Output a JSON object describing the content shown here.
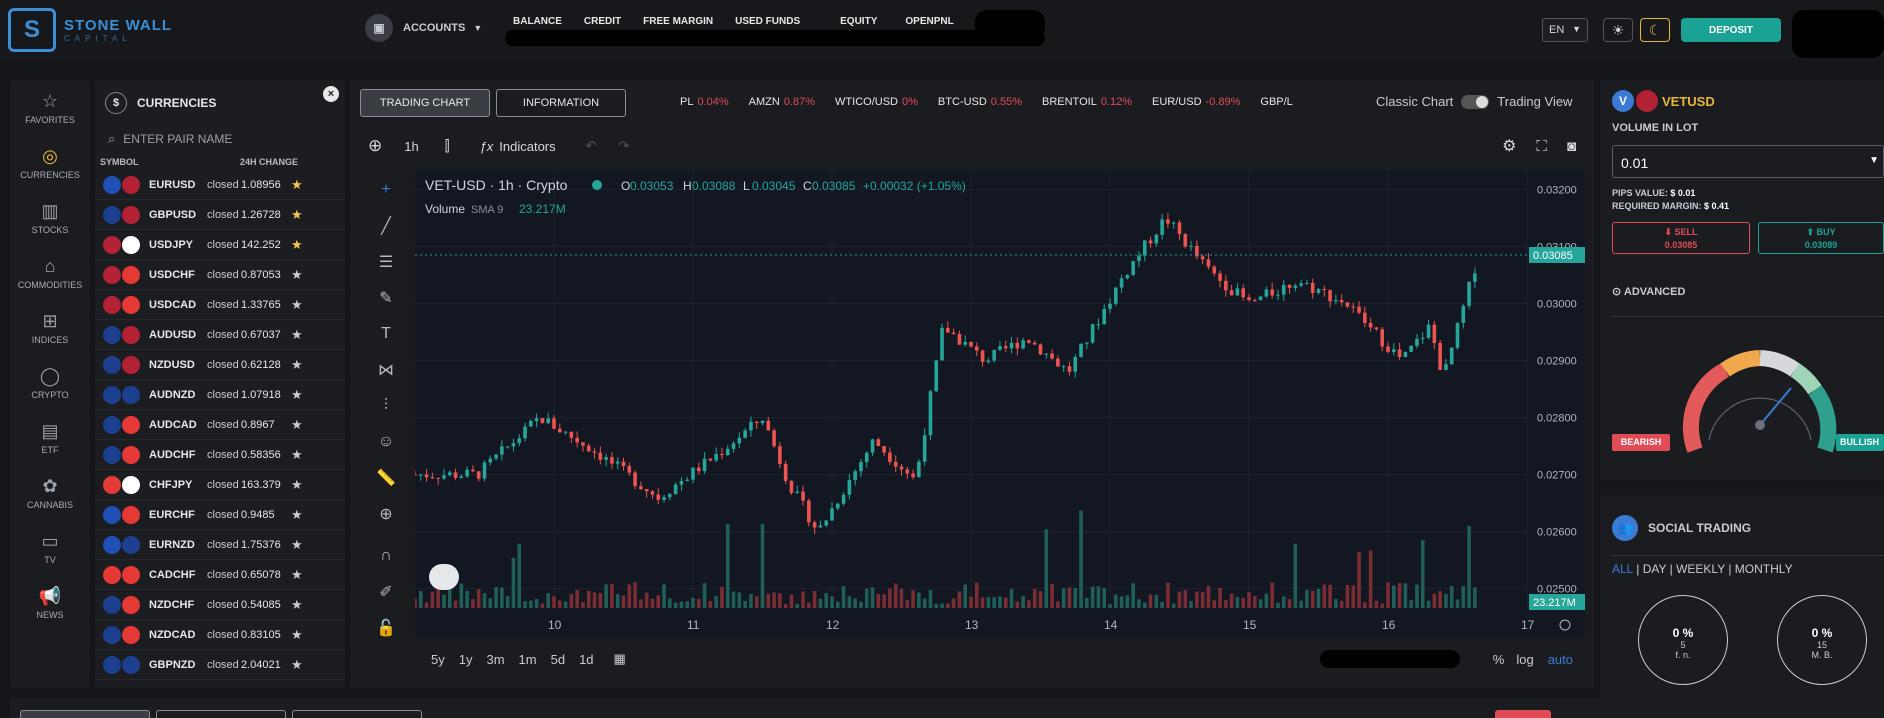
{
  "app": {
    "brand": "STONE WALL",
    "brand_sub": "CAPITAL"
  },
  "topbar": {
    "accounts_label": "ACCOUNTS",
    "nav": [
      "BALANCE",
      "CREDIT",
      "FREE MARGIN",
      "USED FUNDS",
      "EQUITY",
      "OPENPNL"
    ],
    "language": "EN",
    "deposit_label": "DEPOSIT"
  },
  "sidebar": {
    "items": [
      {
        "label": "FAVORITES",
        "icon": "star-icon"
      },
      {
        "label": "CURRENCIES",
        "icon": "coin-icon"
      },
      {
        "label": "STOCKS",
        "icon": "bar-chart-icon"
      },
      {
        "label": "COMMODITIES",
        "icon": "factory-icon"
      },
      {
        "label": "INDICES",
        "icon": "indices-icon"
      },
      {
        "label": "CRYPTO",
        "icon": "crypto-icon"
      },
      {
        "label": "ETF",
        "icon": "document-icon"
      },
      {
        "label": "CANNABIS",
        "icon": "leaf-icon"
      },
      {
        "label": "TV",
        "icon": "tv-icon"
      },
      {
        "label": "NEWS",
        "icon": "megaphone-icon"
      }
    ]
  },
  "currencies": {
    "title": "CURRENCIES",
    "search_placeholder": "ENTER PAIR NAME",
    "col_symbol": "SYMBOL",
    "col_change": "24H CHANGE",
    "rows": [
      {
        "symbol": "EURUSD",
        "status": "closed",
        "price": "1.08956",
        "fav": true,
        "f1": "#1f4fb5",
        "f2": "#b22234"
      },
      {
        "symbol": "GBPUSD",
        "status": "closed",
        "price": "1.26728",
        "fav": true,
        "f1": "#1d3f8f",
        "f2": "#b22234"
      },
      {
        "symbol": "USDJPY",
        "status": "closed",
        "price": "142.252",
        "fav": true,
        "f1": "#b22234",
        "f2": "#ffffff"
      },
      {
        "symbol": "USDCHF",
        "status": "closed",
        "price": "0.87053",
        "fav": false,
        "f1": "#b22234",
        "f2": "#e53935"
      },
      {
        "symbol": "USDCAD",
        "status": "closed",
        "price": "1.33765",
        "fav": false,
        "f1": "#b22234",
        "f2": "#e53935"
      },
      {
        "symbol": "AUDUSD",
        "status": "closed",
        "price": "0.67037",
        "fav": false,
        "f1": "#1d3f8f",
        "f2": "#b22234"
      },
      {
        "symbol": "NZDUSD",
        "status": "closed",
        "price": "0.62128",
        "fav": false,
        "f1": "#1d3f8f",
        "f2": "#b22234"
      },
      {
        "symbol": "AUDNZD",
        "status": "closed",
        "price": "1.07918",
        "fav": false,
        "f1": "#1d3f8f",
        "f2": "#1d3f8f"
      },
      {
        "symbol": "AUDCAD",
        "status": "closed",
        "price": "0.8967",
        "fav": false,
        "f1": "#1d3f8f",
        "f2": "#e53935"
      },
      {
        "symbol": "AUDCHF",
        "status": "closed",
        "price": "0.58356",
        "fav": false,
        "f1": "#1d3f8f",
        "f2": "#e53935"
      },
      {
        "symbol": "CHFJPY",
        "status": "closed",
        "price": "163.379",
        "fav": false,
        "f1": "#e53935",
        "f2": "#ffffff"
      },
      {
        "symbol": "EURCHF",
        "status": "closed",
        "price": "0.9485",
        "fav": false,
        "f1": "#1f4fb5",
        "f2": "#e53935"
      },
      {
        "symbol": "EURNZD",
        "status": "closed",
        "price": "1.75376",
        "fav": false,
        "f1": "#1f4fb5",
        "f2": "#1d3f8f"
      },
      {
        "symbol": "CADCHF",
        "status": "closed",
        "price": "0.65078",
        "fav": false,
        "f1": "#e53935",
        "f2": "#e53935"
      },
      {
        "symbol": "NZDCHF",
        "status": "closed",
        "price": "0.54085",
        "fav": false,
        "f1": "#1d3f8f",
        "f2": "#e53935"
      },
      {
        "symbol": "NZDCAD",
        "status": "closed",
        "price": "0.83105",
        "fav": false,
        "f1": "#1d3f8f",
        "f2": "#e53935"
      },
      {
        "symbol": "GBPNZD",
        "status": "closed",
        "price": "2.04021",
        "fav": false,
        "f1": "#1d3f8f",
        "f2": "#1d3f8f"
      }
    ]
  },
  "chart_tabs": {
    "trading_chart": "TRADING CHART",
    "information": "INFORMATION"
  },
  "ticker": [
    {
      "name": "PL",
      "value": "0.04%"
    },
    {
      "name": "AMZN",
      "value": "0.87%"
    },
    {
      "name": "WTICO/USD",
      "value": "0%"
    },
    {
      "name": "BTC-USD",
      "value": "0.55%"
    },
    {
      "name": "BRENTOIL",
      "value": "0.12%"
    },
    {
      "name": "EUR/USD",
      "value": "-0.89%"
    },
    {
      "name": "GBP/L",
      "value": ""
    }
  ],
  "view_toggle": {
    "classic": "Classic Chart",
    "trading": "Trading View"
  },
  "tv": {
    "interval": "1h",
    "indicators_label": "Indicators",
    "legend_symbol": "VET-USD · 1h · Crypto",
    "o_label": "O",
    "o_val": "0.03053",
    "h_label": "H",
    "h_val": "0.03088",
    "l_label": "L",
    "l_val": "0.03045",
    "c_label": "C",
    "c_val": "0.03085",
    "change": "+0.00032 (+1.05%)",
    "volume_label": "Volume",
    "volume_sma": "SMA 9",
    "volume_value": "23.217M",
    "price_tag": "0.03085",
    "volume_tag": "23.217M",
    "y_ticks": [
      "0.03200",
      "0.03100",
      "0.03000",
      "0.02900",
      "0.02800",
      "0.02700",
      "0.02600",
      "0.02500"
    ],
    "x_ticks": [
      "10",
      "11",
      "12",
      "13",
      "14",
      "15",
      "16",
      "17"
    ],
    "timeframes": [
      "5y",
      "1y",
      "3m",
      "1m",
      "5d",
      "1d"
    ],
    "pct": "%",
    "log": "log",
    "auto": "auto"
  },
  "chart_data": {
    "type": "candlestick",
    "symbol": "VET-USD",
    "interval": "1h",
    "x_range": [
      "9",
      "17"
    ],
    "y_range": [
      0.0248,
      0.0322
    ],
    "anchors": [
      {
        "x": 9.45,
        "close": 0.027
      },
      {
        "x": 9.9,
        "close": 0.028
      },
      {
        "x": 10.3,
        "close": 0.0274
      },
      {
        "x": 10.75,
        "close": 0.0266
      },
      {
        "x": 11.2,
        "close": 0.0274
      },
      {
        "x": 11.5,
        "close": 0.028
      },
      {
        "x": 11.7,
        "close": 0.0268
      },
      {
        "x": 11.9,
        "close": 0.026
      },
      {
        "x": 12.3,
        "close": 0.0276
      },
      {
        "x": 12.6,
        "close": 0.0269
      },
      {
        "x": 12.8,
        "close": 0.0296
      },
      {
        "x": 13.1,
        "close": 0.029
      },
      {
        "x": 13.4,
        "close": 0.0294
      },
      {
        "x": 13.7,
        "close": 0.0288
      },
      {
        "x": 14.1,
        "close": 0.0305
      },
      {
        "x": 14.4,
        "close": 0.0315
      },
      {
        "x": 14.7,
        "close": 0.0306
      },
      {
        "x": 15.0,
        "close": 0.03
      },
      {
        "x": 15.35,
        "close": 0.0304
      },
      {
        "x": 15.7,
        "close": 0.03
      },
      {
        "x": 16.1,
        "close": 0.029
      },
      {
        "x": 16.3,
        "close": 0.0296
      },
      {
        "x": 16.4,
        "close": 0.0287
      },
      {
        "x": 16.65,
        "close": 0.03085
      }
    ],
    "last_price": 0.03085,
    "last_volume": "23.217M"
  },
  "order": {
    "symbol": "VETUSD",
    "volume_label": "VOLUME IN LOT",
    "volume_value": "0.01",
    "pips_label": "PIPS VALUE:",
    "pips_value": "$ 0.01",
    "margin_label": "REQUIRED MARGIN:",
    "margin_value": "$ 0.41",
    "sell_label": "SELL",
    "sell_price": "0.03085",
    "buy_label": "BUY",
    "buy_price": "0.03089",
    "advanced_label": "ADVANCED",
    "bearish": "BEARISH",
    "bullish": "BULLISH"
  },
  "social": {
    "title": "SOCIAL TRADING",
    "filters": [
      "ALL",
      "DAY",
      "WEEKLY",
      "MONTHLY"
    ],
    "cards": [
      {
        "pct": "0 %",
        "count": "5",
        "name": "f. n."
      },
      {
        "pct": "0 %",
        "count": "15",
        "name": "M. B."
      }
    ]
  }
}
